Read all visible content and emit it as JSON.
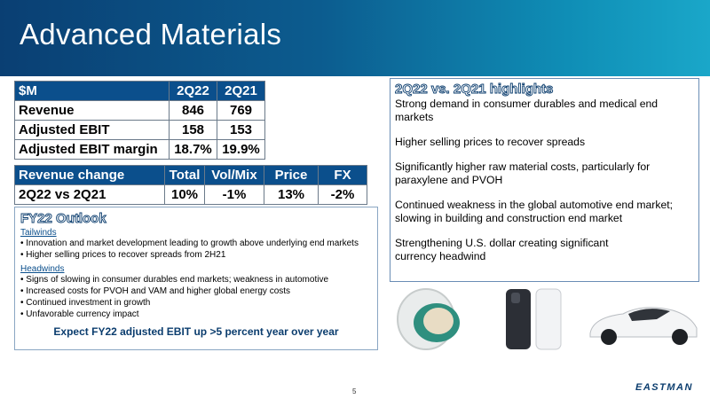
{
  "title": "Advanced Materials",
  "table1": {
    "headers": [
      "$M",
      "2Q22",
      "2Q21"
    ],
    "rows": [
      [
        "Revenue",
        "846",
        "769"
      ],
      [
        "Adjusted EBIT",
        "158",
        "153"
      ],
      [
        "Adjusted EBIT margin",
        "18.7%",
        "19.9%"
      ]
    ]
  },
  "table2": {
    "headers": [
      "Revenue change",
      "Total",
      "Vol/Mix",
      "Price",
      "FX"
    ],
    "row": [
      "2Q22 vs 2Q21",
      "10%",
      "-1%",
      "13%",
      "-2%"
    ]
  },
  "outlook": {
    "title": "FY22 Outlook",
    "tailwinds_label": "Tailwinds",
    "tailwinds": [
      "Innovation and market development leading to growth above underlying end markets",
      "Higher selling prices to recover spreads from 2H21"
    ],
    "headwinds_label": "Headwinds",
    "headwinds": [
      "Signs of slowing in consumer durables end markets; weakness in automotive",
      "Increased costs for PVOH and VAM and higher global energy costs",
      "Continued investment in growth",
      "Unfavorable currency impact"
    ],
    "expect": "Expect FY22 adjusted EBIT up >5 percent year over year"
  },
  "highlights": {
    "title": "2Q22 vs. 2Q21 highlights",
    "items": [
      "Strong demand in consumer durables and medical end markets",
      "Higher selling prices to recover spreads",
      "Significantly higher raw material costs, particularly for paraxylene and PVOH",
      "Continued weakness in the global automotive end market; slowing in building and construction end market",
      "Strengthening U.S. dollar creating significant currency headwind"
    ]
  },
  "page_number": "5",
  "logo": "EASTMAN"
}
